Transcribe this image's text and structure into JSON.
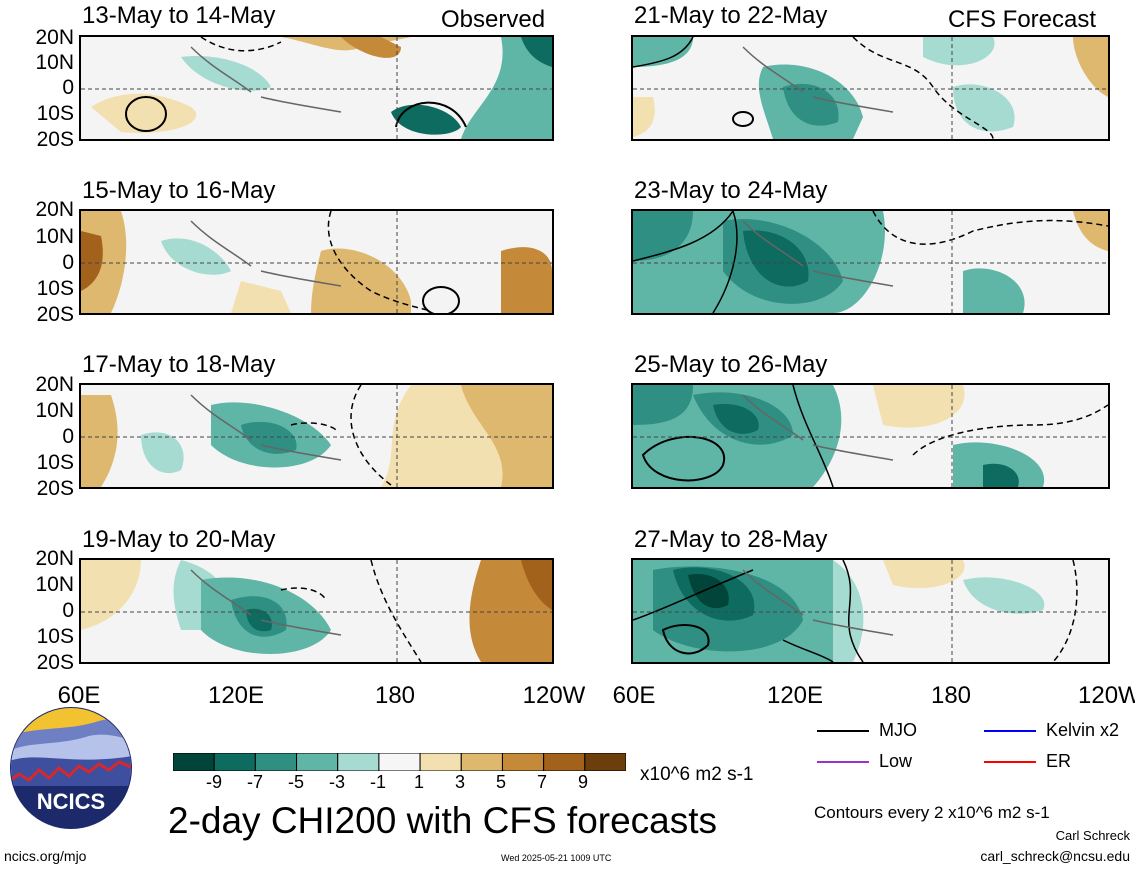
{
  "header": {
    "observed_label": "Observed",
    "forecast_label": "CFS Forecast"
  },
  "panels": [
    {
      "title": "13-May to 14-May"
    },
    {
      "title": "15-May to 16-May"
    },
    {
      "title": "17-May to 18-May"
    },
    {
      "title": "19-May to 20-May"
    },
    {
      "title": "21-May to 22-May"
    },
    {
      "title": "23-May to 24-May"
    },
    {
      "title": "25-May to 26-May"
    },
    {
      "title": "27-May to 28-May"
    }
  ],
  "axes": {
    "y_ticks": [
      "20N",
      "10N",
      "0",
      "10S",
      "20S"
    ],
    "x_ticks": [
      "60E",
      "120E",
      "180",
      "120W"
    ]
  },
  "chart_data": {
    "type": "heatmap",
    "variable": "2-day CHI200 with CFS forecasts",
    "lon_range": [
      "60E",
      "120W"
    ],
    "lat_range": [
      "20S",
      "20N"
    ],
    "colorbar": {
      "levels": [
        "-9",
        "-7",
        "-5",
        "-3",
        "-1",
        "1",
        "3",
        "5",
        "7",
        "9"
      ],
      "colors": [
        "#00443a",
        "#0d6b5f",
        "#2f8f82",
        "#5fb5a6",
        "#a6dbd1",
        "#f6f6f6",
        "#f3e0b0",
        "#ddb86e",
        "#c48a3a",
        "#a3621c",
        "#6b3e0c"
      ],
      "units": "x10^6 m2 s-1"
    },
    "series": [
      {
        "name": "MJO",
        "color": "#000000"
      },
      {
        "name": "Kelvin x2",
        "color": "#0000ff"
      },
      {
        "name": "Low",
        "color": "#9933cc"
      },
      {
        "name": "ER",
        "color": "#ff0000"
      }
    ]
  },
  "footer": {
    "title": "2-day CHI200 with CFS forecasts",
    "contour_note": "Contours every 2 x10^6 m2 s-1",
    "author": "Carl Schreck",
    "email": "carl_schreck@ncsu.edu",
    "url": "ncics.org/mjo",
    "timestamp": "Wed 2025-05-21 1009 UTC",
    "logo_text": "NCICS"
  }
}
